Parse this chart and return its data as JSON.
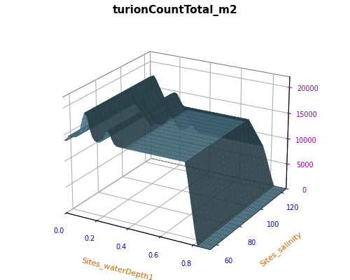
{
  "title": "turionCountTotal_m2",
  "xlabel": "Sites_waterDepth1",
  "ylabel": "Sites_salinity",
  "x_ticks": [
    0.0,
    0.2,
    0.4,
    0.6,
    0.8
  ],
  "y_ticks": [
    60,
    80,
    100,
    120
  ],
  "z_ticks": [
    0,
    5000,
    10000,
    15000,
    20000
  ],
  "surface_color": "#5a8a9f",
  "edge_color": "#2a4a5a",
  "alpha": 0.9,
  "title_fontsize": 11,
  "label_fontsize": 8,
  "xlabel_color": "#cc6600",
  "ylabel_color": "#cc6600",
  "ztick_color": "#990099",
  "xtick_color": "#0000cc",
  "ytick_color": "#0000cc"
}
